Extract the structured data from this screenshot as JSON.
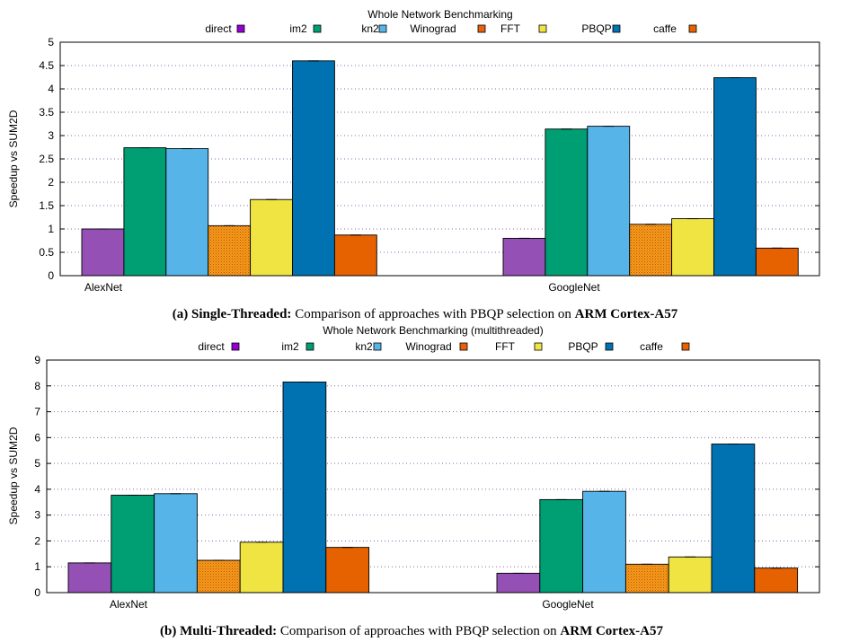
{
  "chart_data": [
    {
      "type": "bar",
      "title": "Whole Network Benchmarking",
      "caption_label": "(a) Single-Threaded:",
      "caption_text_1": "Comparison of approaches with PBQP selection on",
      "caption_text_2": "ARM Cortex-A57",
      "ylabel": "Speedup vs SUM2D",
      "xlabel": "",
      "ylim": [
        0,
        5
      ],
      "yticks": [
        "0",
        "0.5",
        "1",
        "1.5",
        "2",
        "2.5",
        "3",
        "3.5",
        "4",
        "4.5",
        "5"
      ],
      "ytick_values": [
        0,
        0.5,
        1,
        1.5,
        2,
        2.5,
        3,
        3.5,
        4,
        4.5,
        5
      ],
      "grid": true,
      "legend_position": "top",
      "categories": [
        "AlexNet",
        "GoogleNet"
      ],
      "series": [
        {
          "name": "direct",
          "values": [
            1.0,
            0.8
          ]
        },
        {
          "name": "im2",
          "values": [
            2.74,
            3.14
          ]
        },
        {
          "name": "kn2",
          "values": [
            2.72,
            3.2
          ]
        },
        {
          "name": "Winograd",
          "values": [
            1.07,
            1.1
          ]
        },
        {
          "name": "FFT",
          "values": [
            1.63,
            1.22
          ]
        },
        {
          "name": "PBQP",
          "values": [
            4.6,
            4.24
          ]
        },
        {
          "name": "caffe",
          "values": [
            0.87,
            0.59
          ]
        }
      ]
    },
    {
      "type": "bar",
      "title": "Whole Network Benchmarking (multithreaded)",
      "caption_label": "(b) Multi-Threaded:",
      "caption_text_1": "Comparison of approaches with PBQP selection on",
      "caption_text_2": "ARM Cortex-A57",
      "ylabel": "Speedup vs SUM2D",
      "xlabel": "",
      "ylim": [
        0,
        9
      ],
      "yticks": [
        "0",
        "1",
        "2",
        "3",
        "4",
        "5",
        "6",
        "7",
        "8",
        "9"
      ],
      "ytick_values": [
        0,
        1,
        2,
        3,
        4,
        5,
        6,
        7,
        8,
        9
      ],
      "grid": true,
      "legend_position": "top",
      "categories": [
        "AlexNet",
        "GoogleNet"
      ],
      "series": [
        {
          "name": "direct",
          "values": [
            1.15,
            0.75
          ]
        },
        {
          "name": "im2",
          "values": [
            3.77,
            3.6
          ]
        },
        {
          "name": "kn2",
          "values": [
            3.83,
            3.92
          ]
        },
        {
          "name": "Winograd",
          "values": [
            1.25,
            1.1
          ]
        },
        {
          "name": "FFT",
          "values": [
            1.95,
            1.38
          ]
        },
        {
          "name": "PBQP",
          "values": [
            8.15,
            5.75
          ]
        },
        {
          "name": "caffe",
          "values": [
            1.75,
            0.95
          ]
        }
      ]
    }
  ],
  "colors": {
    "direct": "#9450b4",
    "im2": "#009e73",
    "kn2": "#56b4e9",
    "Winograd": "#e69f00",
    "FFT": "#f0e442",
    "PBQP": "#0072b2",
    "caffe": "#e66100"
  },
  "legend_glyph_colors": {
    "direct": "#9400d3",
    "im2": "#009e73",
    "kn2": "#56b4e9",
    "Winograd": "#e6600d",
    "FFT": "#f0e442",
    "PBQP": "#0072b2",
    "caffe": "#e66100"
  },
  "winograd_pattern": "dotted-orange"
}
